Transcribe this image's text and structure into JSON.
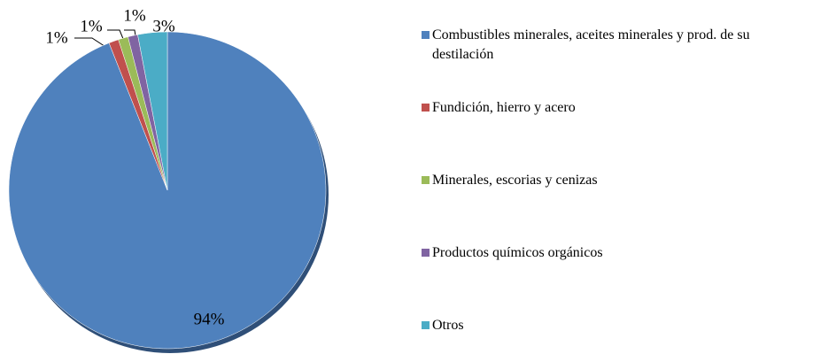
{
  "chart_data": {
    "type": "pie",
    "categories": [
      "Combustibles minerales, aceites minerales y prod. de su destilación",
      "Fundición, hierro y acero",
      "Minerales, escorias y cenizas",
      "Productos químicos orgánicos",
      "Otros"
    ],
    "values": [
      94,
      1,
      1,
      1,
      3
    ],
    "value_labels": [
      "94%",
      "1%",
      "1%",
      "1%",
      "3%"
    ],
    "colors": [
      "#4f81bd",
      "#c0504d",
      "#9bbb59",
      "#8064a2",
      "#4bacc6"
    ],
    "legend": "right"
  }
}
